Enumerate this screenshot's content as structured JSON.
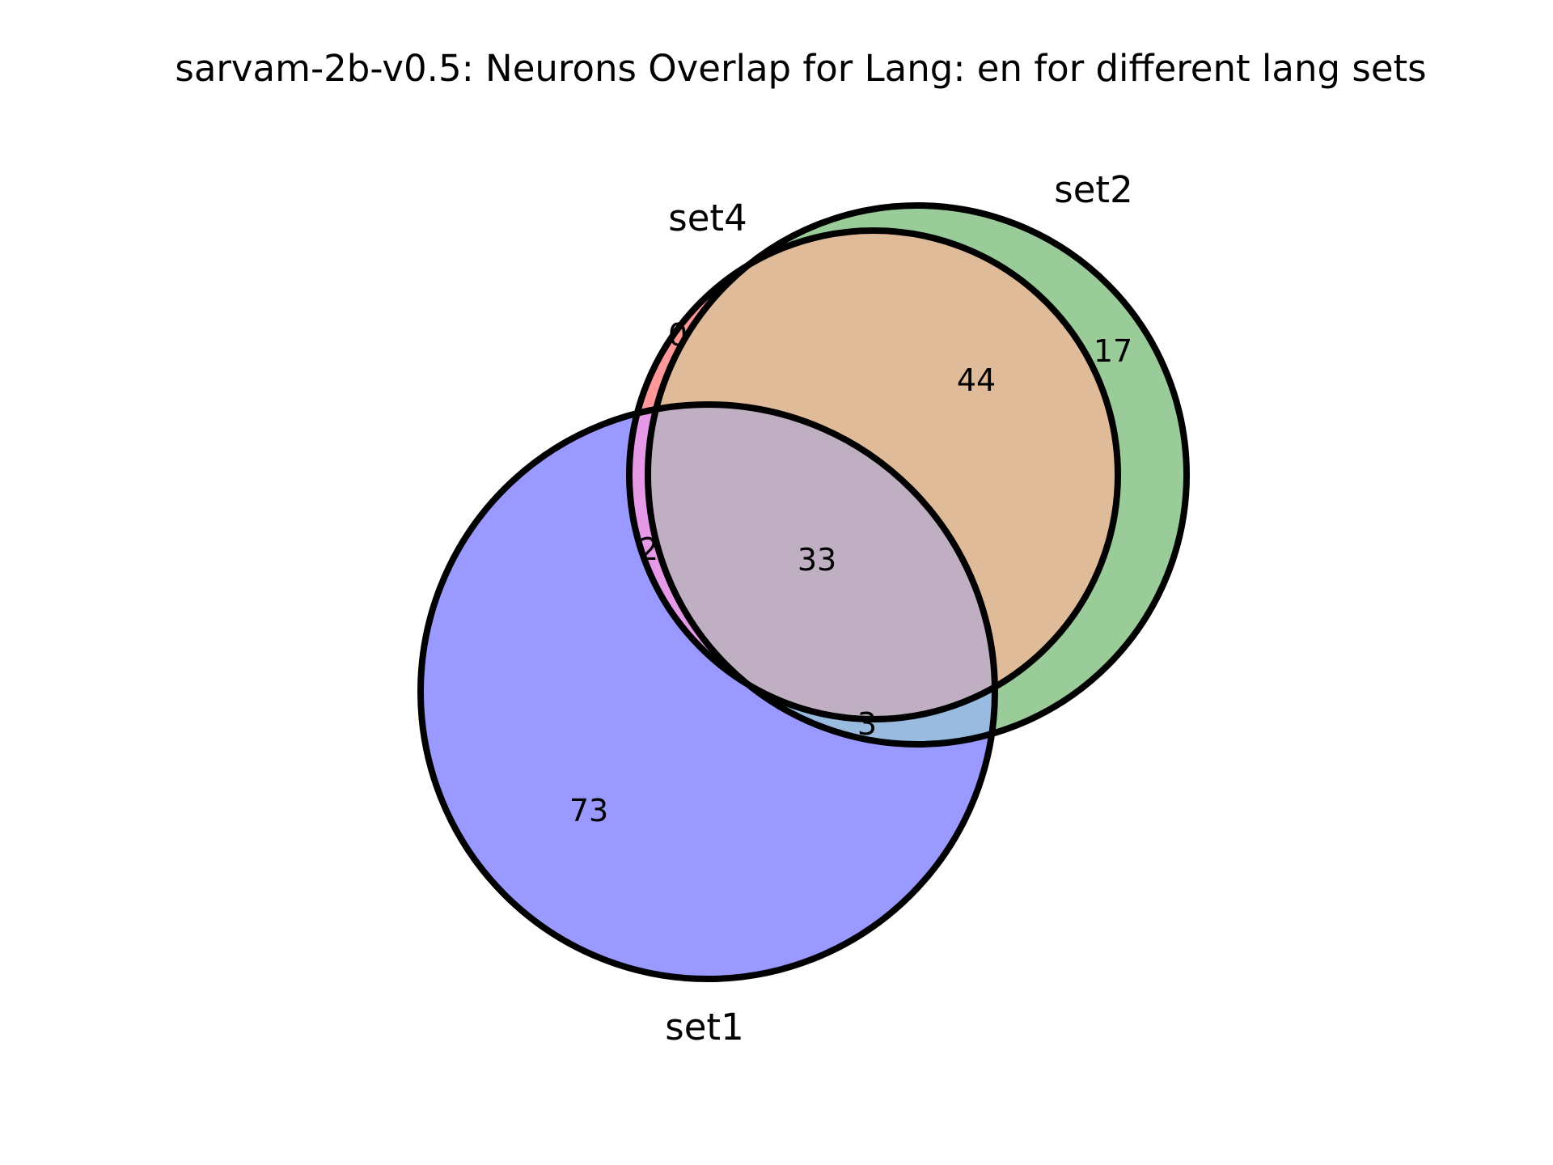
{
  "title": "sarvam-2b-v0.5: Neurons Overlap for Lang: en for different lang sets",
  "sets": {
    "set1": {
      "label": "set1",
      "color": "#9999ff"
    },
    "set2": {
      "label": "set2",
      "color": "#99cc99"
    },
    "set4": {
      "label": "set4",
      "color": "#ff9999"
    }
  },
  "regions": {
    "set1_only": "73",
    "set2_only": "17",
    "set4_only": "0",
    "set2_set4": "44",
    "set1_set2_set4": "33",
    "set1_set4": "2",
    "set1_set2": "3"
  },
  "region_colors": {
    "set2_set4": "#e0bb99",
    "set1_set2_set4": "#c0aec2",
    "set1_set4": "#e699e6",
    "set1_set2": "#99bbe0"
  }
}
